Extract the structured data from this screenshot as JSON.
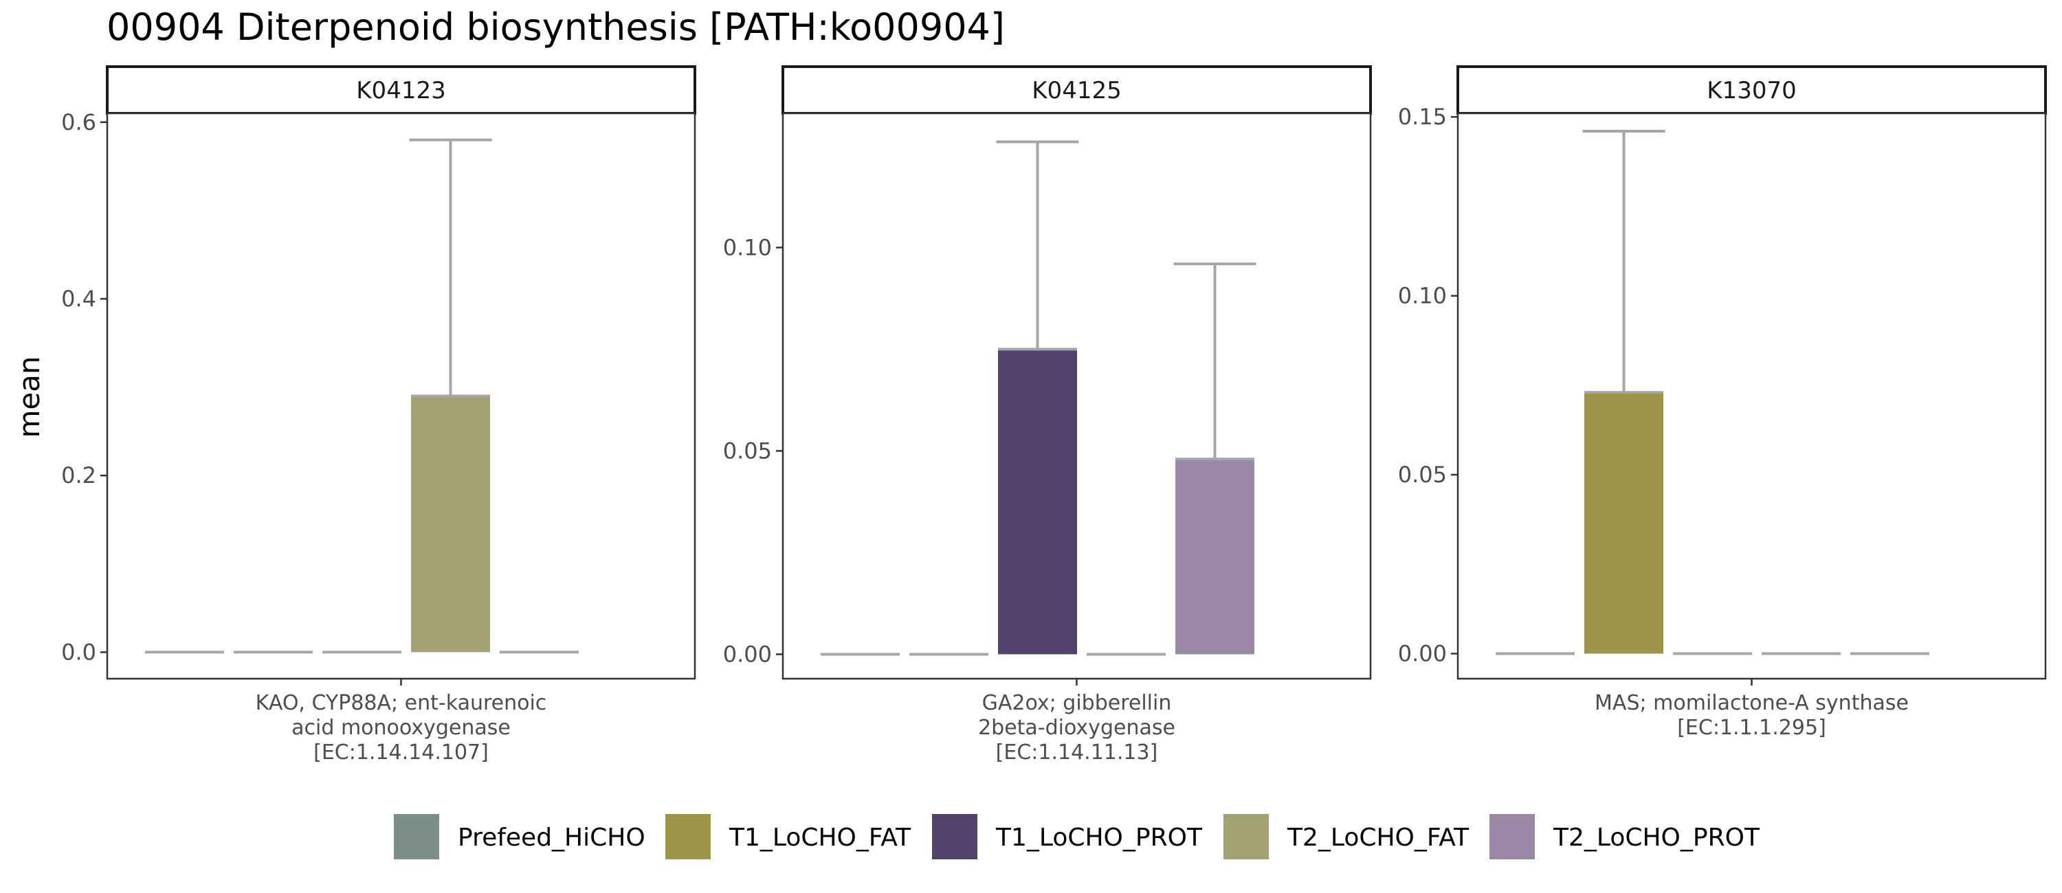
{
  "chart_data": {
    "type": "bar",
    "title": "00904 Diterpenoid biosynthesis [PATH:ko00904]",
    "ylabel": "mean",
    "groups": [
      "Prefeed_HiCHO",
      "T1_LoCHO_FAT",
      "T1_LoCHO_PROT",
      "T2_LoCHO_FAT",
      "T2_LoCHO_PROT"
    ],
    "colors": {
      "Prefeed_HiCHO": "#7b8e88",
      "T1_LoCHO_FAT": "#9c9447",
      "T1_LoCHO_PROT": "#52426b",
      "T2_LoCHO_FAT": "#a2a274",
      "T2_LoCHO_PROT": "#9a86a5"
    },
    "error_bar_color": "#a6a6a6",
    "legend_position": "bottom",
    "panels": [
      {
        "strip": "K04123",
        "xlabel": [
          "KAO, CYP88A; ent-kaurenoic",
          "acid monooxygenase",
          "[EC:1.14.14.107]"
        ],
        "ylim": [
          -0.03,
          0.61
        ],
        "yticks": [
          0.0,
          0.2,
          0.4,
          0.6
        ],
        "ytick_labels": [
          "0.0",
          "0.2",
          "0.4",
          "0.6"
        ],
        "order": [
          "Prefeed_HiCHO",
          "T1_LoCHO_PROT",
          "T2_LoCHO_PROT",
          "T2_LoCHO_FAT",
          "T1_LoCHO_FAT"
        ],
        "values": [
          0,
          0,
          0,
          0.29,
          0
        ],
        "errors": [
          0,
          0,
          0,
          0.29,
          0
        ]
      },
      {
        "strip": "K04125",
        "xlabel": [
          "GA2ox; gibberellin",
          "2beta-dioxygenase",
          "[EC:1.14.11.13]"
        ],
        "ylim": [
          -0.006,
          0.133
        ],
        "yticks": [
          0.0,
          0.05,
          0.1
        ],
        "ytick_labels": [
          "0.00",
          "0.05",
          "0.10"
        ],
        "order": [
          "Prefeed_HiCHO",
          "T1_LoCHO_FAT",
          "T1_LoCHO_PROT",
          "T2_LoCHO_FAT",
          "T2_LoCHO_PROT"
        ],
        "values": [
          0,
          0,
          0.075,
          0,
          0.048
        ],
        "errors": [
          0,
          0,
          0.051,
          0,
          0.048
        ]
      },
      {
        "strip": "K13070",
        "xlabel": [
          "MAS; momilactone-A synthase",
          "[EC:1.1.1.295]"
        ],
        "ylim": [
          -0.007,
          0.151
        ],
        "yticks": [
          0.0,
          0.05,
          0.1,
          0.15
        ],
        "ytick_labels": [
          "0.00",
          "0.05",
          "0.10",
          "0.15"
        ],
        "order": [
          "Prefeed_HiCHO",
          "T1_LoCHO_FAT",
          "T1_LoCHO_PROT",
          "T2_LoCHO_FAT",
          "T2_LoCHO_PROT"
        ],
        "values": [
          0,
          0.073,
          0,
          0,
          0
        ],
        "errors": [
          0,
          0.073,
          0,
          0,
          0
        ]
      }
    ]
  }
}
